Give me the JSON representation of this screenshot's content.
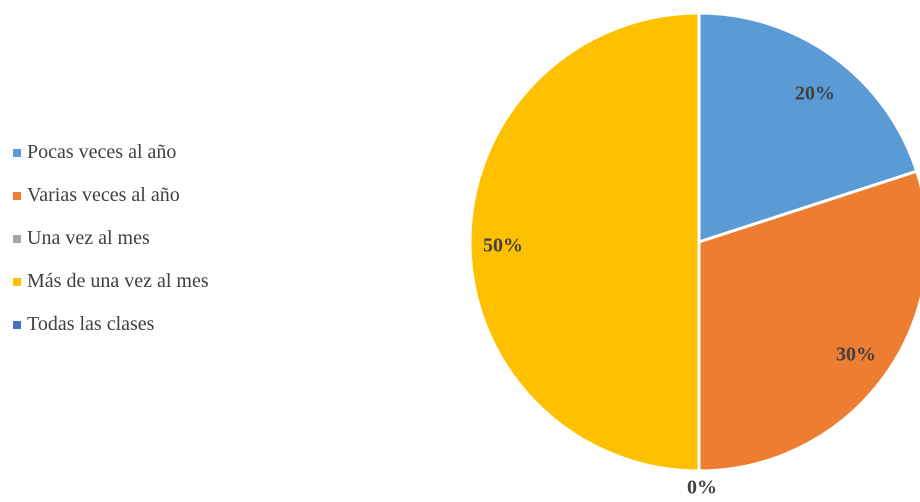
{
  "chart_data": {
    "type": "pie",
    "categories": [
      "Pocas veces al año",
      "Varias veces al año",
      "Una vez al mes",
      "Más de una vez al mes",
      "Todas las clases"
    ],
    "values": [
      20,
      30,
      0,
      50,
      0
    ],
    "data_labels": [
      "20%",
      "30%",
      "",
      "50%",
      "0%"
    ],
    "colors": [
      "#5b9bd5",
      "#ed7d31",
      "#a5a5a5",
      "#ffc000",
      "#4472c4"
    ],
    "legend_position": "left"
  }
}
